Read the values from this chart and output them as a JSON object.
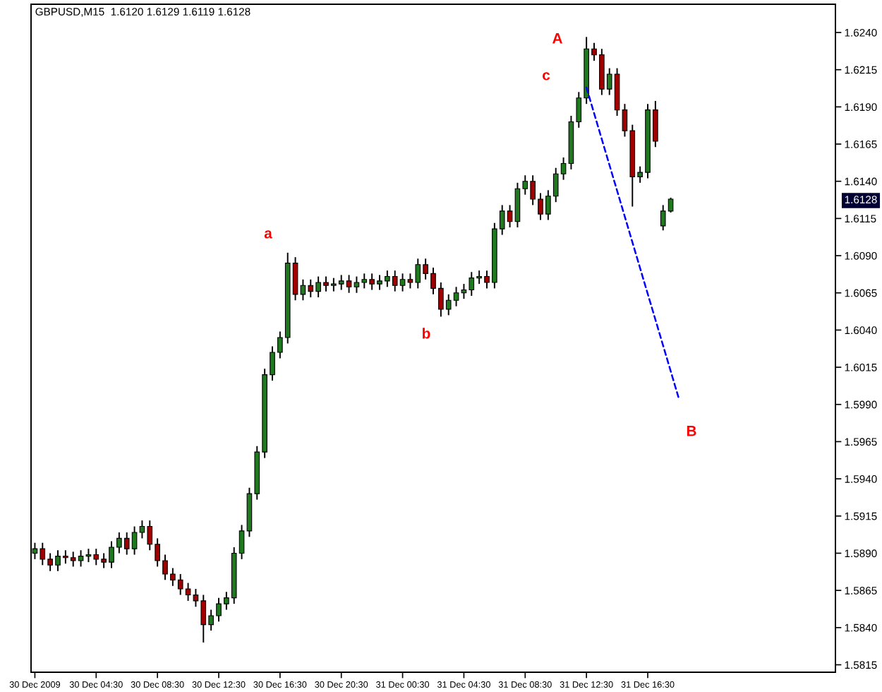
{
  "chart_data": {
    "type": "candlestick",
    "title": "GBPUSD,M15  1.6120 1.6129 1.6119 1.6128",
    "categories": [
      "30 Dec 2009",
      null,
      null,
      null,
      null,
      null,
      null,
      null,
      "30 Dec 04:30",
      null,
      null,
      null,
      null,
      null,
      null,
      null,
      "30 Dec 08:30",
      null,
      null,
      null,
      null,
      null,
      null,
      null,
      "30 Dec 12:30",
      null,
      null,
      null,
      null,
      null,
      null,
      null,
      "30 Dec 16:30",
      null,
      null,
      null,
      null,
      null,
      null,
      null,
      "30 Dec 20:30",
      null,
      null,
      null,
      null,
      null,
      null,
      null,
      "31 Dec 00:30",
      null,
      null,
      null,
      null,
      null,
      null,
      null,
      "31 Dec 04:30",
      null,
      null,
      null,
      null,
      null,
      null,
      null,
      "31 Dec 08:30",
      null,
      null,
      null,
      null,
      null,
      null,
      null,
      "31 Dec 12:30",
      null,
      null,
      null,
      null,
      null,
      null,
      null,
      "31 Dec 16:30",
      null,
      null,
      null,
      null,
      null,
      null,
      null,
      null,
      null,
      null,
      null,
      null,
      null,
      null,
      null,
      null,
      null,
      null,
      null,
      null,
      null,
      null,
      null,
      null
    ],
    "ohlc": [
      [
        1.589,
        1.5897,
        1.5886,
        1.5893
      ],
      [
        1.5893,
        1.5897,
        1.5882,
        1.5886
      ],
      [
        1.5886,
        1.589,
        1.5878,
        1.5882
      ],
      [
        1.5882,
        1.5892,
        1.5878,
        1.5888
      ],
      [
        1.5888,
        1.5892,
        1.5883,
        1.5887
      ],
      [
        1.5887,
        1.5891,
        1.5881,
        1.5885
      ],
      [
        1.5885,
        1.5892,
        1.5881,
        1.5888
      ],
      [
        1.5888,
        1.5893,
        1.5884,
        1.5889
      ],
      [
        1.5889,
        1.5893,
        1.5882,
        1.5886
      ],
      [
        1.5886,
        1.589,
        1.588,
        1.5884
      ],
      [
        1.5884,
        1.5898,
        1.588,
        1.5894
      ],
      [
        1.5894,
        1.5904,
        1.589,
        1.59
      ],
      [
        1.59,
        1.5904,
        1.5889,
        1.5893
      ],
      [
        1.5893,
        1.5908,
        1.5889,
        1.5904
      ],
      [
        1.5904,
        1.5912,
        1.59,
        1.5908
      ],
      [
        1.5908,
        1.5912,
        1.5892,
        1.5896
      ],
      [
        1.5896,
        1.59,
        1.5881,
        1.5885
      ],
      [
        1.5885,
        1.5889,
        1.5872,
        1.5876
      ],
      [
        1.5876,
        1.588,
        1.5868,
        1.5872
      ],
      [
        1.5872,
        1.5876,
        1.5862,
        1.5866
      ],
      [
        1.5866,
        1.587,
        1.5858,
        1.5862
      ],
      [
        1.5862,
        1.5866,
        1.5854,
        1.5858
      ],
      [
        1.5858,
        1.5862,
        1.583,
        1.5842
      ],
      [
        1.5842,
        1.5852,
        1.5838,
        1.5848
      ],
      [
        1.5848,
        1.586,
        1.5844,
        1.5856
      ],
      [
        1.5856,
        1.5864,
        1.5852,
        1.586
      ],
      [
        1.586,
        1.5894,
        1.5856,
        1.589
      ],
      [
        1.589,
        1.5909,
        1.5886,
        1.5905
      ],
      [
        1.5905,
        1.5934,
        1.5901,
        1.593
      ],
      [
        1.593,
        1.5962,
        1.5926,
        1.5958
      ],
      [
        1.5958,
        1.6014,
        1.5954,
        1.601
      ],
      [
        1.601,
        1.6029,
        1.6006,
        1.6025
      ],
      [
        1.6025,
        1.6039,
        1.6021,
        1.6035
      ],
      [
        1.6035,
        1.6092,
        1.6031,
        1.6085
      ],
      [
        1.6085,
        1.6089,
        1.606,
        1.6064
      ],
      [
        1.6064,
        1.6074,
        1.606,
        1.607
      ],
      [
        1.607,
        1.6074,
        1.6062,
        1.6066
      ],
      [
        1.6066,
        1.6076,
        1.6062,
        1.6072
      ],
      [
        1.6072,
        1.6076,
        1.6066,
        1.607
      ],
      [
        1.607,
        1.6075,
        1.6066,
        1.6071
      ],
      [
        1.6071,
        1.6077,
        1.6067,
        1.6073
      ],
      [
        1.6073,
        1.6077,
        1.6065,
        1.6069
      ],
      [
        1.6069,
        1.6076,
        1.6065,
        1.6072
      ],
      [
        1.6072,
        1.6078,
        1.6068,
        1.6074
      ],
      [
        1.6074,
        1.6078,
        1.6067,
        1.6071
      ],
      [
        1.6071,
        1.6077,
        1.6067,
        1.6073
      ],
      [
        1.6073,
        1.608,
        1.6069,
        1.6076
      ],
      [
        1.6076,
        1.608,
        1.6066,
        1.607
      ],
      [
        1.607,
        1.6078,
        1.6066,
        1.6074
      ],
      [
        1.6074,
        1.6078,
        1.6068,
        1.6072
      ],
      [
        1.6072,
        1.6088,
        1.6068,
        1.6084
      ],
      [
        1.6084,
        1.6088,
        1.6074,
        1.6078
      ],
      [
        1.6078,
        1.6082,
        1.6064,
        1.6068
      ],
      [
        1.6068,
        1.6072,
        1.6049,
        1.6054
      ],
      [
        1.6054,
        1.6064,
        1.605,
        1.606
      ],
      [
        1.606,
        1.6069,
        1.6056,
        1.6065
      ],
      [
        1.6065,
        1.6071,
        1.6061,
        1.6067
      ],
      [
        1.6067,
        1.6079,
        1.6063,
        1.6075
      ],
      [
        1.6075,
        1.608,
        1.6071,
        1.6076
      ],
      [
        1.6076,
        1.608,
        1.6068,
        1.6072
      ],
      [
        1.6072,
        1.6112,
        1.6068,
        1.6108
      ],
      [
        1.6108,
        1.6124,
        1.6104,
        1.612
      ],
      [
        1.612,
        1.6124,
        1.6109,
        1.6113
      ],
      [
        1.6113,
        1.6139,
        1.6109,
        1.6135
      ],
      [
        1.6135,
        1.6144,
        1.6131,
        1.614
      ],
      [
        1.614,
        1.6144,
        1.6124,
        1.6128
      ],
      [
        1.6128,
        1.6132,
        1.6114,
        1.6118
      ],
      [
        1.6118,
        1.6134,
        1.6114,
        1.613
      ],
      [
        1.613,
        1.6149,
        1.6126,
        1.6145
      ],
      [
        1.6145,
        1.6156,
        1.6141,
        1.6152
      ],
      [
        1.6152,
        1.6184,
        1.6148,
        1.618
      ],
      [
        1.618,
        1.62,
        1.6176,
        1.6196
      ],
      [
        1.6196,
        1.6237,
        1.6192,
        1.6229
      ],
      [
        1.6229,
        1.6233,
        1.6221,
        1.6225
      ],
      [
        1.6225,
        1.6229,
        1.6198,
        1.6202
      ],
      [
        1.6202,
        1.6216,
        1.6198,
        1.6212
      ],
      [
        1.6212,
        1.6216,
        1.6184,
        1.6188
      ],
      [
        1.6188,
        1.6192,
        1.617,
        1.6174
      ],
      [
        1.6174,
        1.6178,
        1.6123,
        1.6143
      ],
      [
        1.6143,
        1.615,
        1.6139,
        1.6146
      ],
      [
        1.6146,
        1.6192,
        1.6142,
        1.6188
      ],
      [
        1.6188,
        1.6194,
        1.6163,
        1.6167
      ],
      [
        1.611,
        1.6124,
        1.6107,
        1.612
      ],
      [
        1.612,
        1.6129,
        1.6119,
        1.6128
      ],
      null,
      null,
      null,
      null,
      null,
      null,
      null,
      null,
      null,
      null,
      null,
      null,
      null,
      null,
      null,
      null,
      null,
      null,
      null,
      null,
      null
    ],
    "colors": [
      "#1f7a1f",
      "#a00000",
      "#a00000",
      "#1f7a1f",
      "#a00000",
      "#a00000",
      "#1f7a1f",
      "#1f7a1f",
      "#a00000",
      "#a00000",
      "#1f7a1f",
      "#1f7a1f",
      "#a00000",
      "#1f7a1f",
      "#1f7a1f",
      "#a00000",
      "#a00000",
      "#a00000",
      "#a00000",
      "#a00000",
      "#a00000",
      "#a00000",
      "#a00000",
      "#1f7a1f",
      "#1f7a1f",
      "#1f7a1f",
      "#1f7a1f",
      "#1f7a1f",
      "#1f7a1f",
      "#1f7a1f",
      "#1f7a1f",
      "#1f7a1f",
      "#1f7a1f",
      "#1f7a1f",
      "#a00000",
      "#1f7a1f",
      "#a00000",
      "#1f7a1f",
      "#a00000",
      "#1f7a1f",
      "#1f7a1f",
      "#a00000",
      "#1f7a1f",
      "#1f7a1f",
      "#a00000",
      "#1f7a1f",
      "#1f7a1f",
      "#a00000",
      "#1f7a1f",
      "#a00000",
      "#1f7a1f",
      "#a00000",
      "#a00000",
      "#a00000",
      "#1f7a1f",
      "#1f7a1f",
      "#1f7a1f",
      "#1f7a1f",
      "#1f7a1f",
      "#a00000",
      "#1f7a1f",
      "#1f7a1f",
      "#a00000",
      "#1f7a1f",
      "#1f7a1f",
      "#a00000",
      "#a00000",
      "#1f7a1f",
      "#1f7a1f",
      "#1f7a1f",
      "#1f7a1f",
      "#1f7a1f",
      "#1f7a1f",
      "#a00000",
      "#a00000",
      "#1f7a1f",
      "#a00000",
      "#a00000",
      "#a00000",
      "#1f7a1f",
      "#1f7a1f",
      "#a00000",
      "#1f7a1f",
      "#1f7a1f",
      null,
      null,
      null,
      null,
      null,
      null,
      null,
      null,
      null,
      null,
      null,
      null,
      null,
      null,
      null,
      null,
      null,
      null,
      null,
      null,
      null
    ],
    "series": [
      {
        "type": "line",
        "color": "#0000ff",
        "line_style": "dashed",
        "values": [
          null,
          null,
          null,
          null,
          null,
          null,
          null,
          null,
          null,
          null,
          null,
          null,
          null,
          null,
          null,
          null,
          null,
          null,
          null,
          null,
          null,
          null,
          null,
          null,
          null,
          null,
          null,
          null,
          null,
          null,
          null,
          null,
          null,
          null,
          null,
          null,
          null,
          null,
          null,
          null,
          null,
          null,
          null,
          null,
          null,
          null,
          null,
          null,
          null,
          null,
          null,
          null,
          null,
          null,
          null,
          null,
          null,
          null,
          null,
          null,
          null,
          null,
          null,
          null,
          null,
          null,
          null,
          null,
          null,
          null,
          null,
          null,
          1.6203,
          null,
          null,
          null,
          null,
          null,
          null,
          null,
          null,
          null,
          null,
          null,
          1.5995,
          null,
          null,
          null,
          null,
          null,
          null,
          null,
          null,
          null,
          null,
          null,
          null,
          null,
          null,
          null,
          null,
          null,
          null,
          null,
          null
        ]
      }
    ],
    "annotations": [
      "a",
      "b",
      "c",
      "A",
      "B",
      "1.6128"
    ],
    "ylim": [
      1.581,
      1.6259
    ],
    "yticks": [
      {
        "value": 1.5815,
        "label": "1.5815"
      },
      {
        "value": 1.584,
        "label": "1.5840"
      },
      {
        "value": 1.5865,
        "label": "1.5865"
      },
      {
        "value": 1.589,
        "label": "1.5890"
      },
      {
        "value": 1.5915,
        "label": "1.5915"
      },
      {
        "value": 1.594,
        "label": "1.5940"
      },
      {
        "value": 1.5965,
        "label": "1.5965"
      },
      {
        "value": 1.599,
        "label": "1.5990"
      },
      {
        "value": 1.6015,
        "label": "1.6015"
      },
      {
        "value": 1.604,
        "label": "1.6040"
      },
      {
        "value": 1.6065,
        "label": "1.6065"
      },
      {
        "value": 1.609,
        "label": "1.6090"
      },
      {
        "value": 1.6115,
        "label": "1.6115"
      },
      {
        "value": 1.614,
        "label": "1.6140"
      },
      {
        "value": 1.6165,
        "label": "1.6165"
      },
      {
        "value": 1.619,
        "label": "1.6190"
      },
      {
        "value": 1.6215,
        "label": "1.6215"
      },
      {
        "value": 1.624,
        "label": "1.6240"
      }
    ]
  }
}
